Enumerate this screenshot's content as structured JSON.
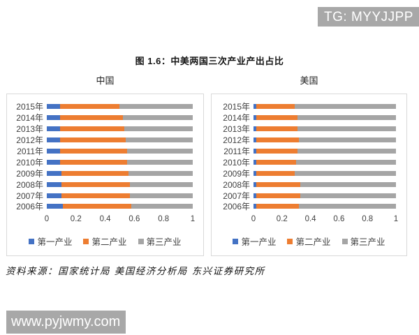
{
  "watermarks": {
    "top_right": "TG: MYYJJPP",
    "bottom_left": "www.pyjwmy.com"
  },
  "figure_title": "图 1.6：中美两国三次产业产出占比",
  "source_note": "资料来源：国家统计局 美国经济分析局  东兴证券研究所",
  "colors": {
    "primary_industry": "#4472C4",
    "secondary_industry": "#ED7D31",
    "tertiary_industry": "#A5A5A5",
    "watermark_bg": "#A8A8A8",
    "panel_border": "#D9D9D9"
  },
  "chart_data": [
    {
      "type": "bar",
      "orientation": "horizontal",
      "stacked": true,
      "title": "中国",
      "categories": [
        "2015年",
        "2014年",
        "2013年",
        "2012年",
        "2011年",
        "2010年",
        "2009年",
        "2008年",
        "2007年",
        "2006年"
      ],
      "series": [
        {
          "name": "第一产业",
          "color": "#4472C4",
          "values": [
            0.09,
            0.09,
            0.09,
            0.09,
            0.09,
            0.09,
            0.1,
            0.1,
            0.1,
            0.11
          ]
        },
        {
          "name": "第二产业",
          "color": "#ED7D31",
          "values": [
            0.41,
            0.43,
            0.44,
            0.45,
            0.46,
            0.46,
            0.46,
            0.47,
            0.47,
            0.47
          ]
        },
        {
          "name": "第三产业",
          "color": "#A5A5A5",
          "values": [
            0.5,
            0.48,
            0.47,
            0.46,
            0.45,
            0.45,
            0.44,
            0.43,
            0.43,
            0.42
          ]
        }
      ],
      "xlim": [
        0,
        1
      ],
      "xticks": [
        "0",
        "0.2",
        "0.4",
        "0.6",
        "0.8",
        "1"
      ],
      "grid": false,
      "legend_position": "bottom"
    },
    {
      "type": "bar",
      "orientation": "horizontal",
      "stacked": true,
      "title": "美国",
      "categories": [
        "2015年",
        "2014年",
        "2013年",
        "2012年",
        "2011年",
        "2010年",
        "2009年",
        "2008年",
        "2007年",
        "2006年"
      ],
      "series": [
        {
          "name": "第一产业",
          "color": "#4472C4",
          "values": [
            0.02,
            0.02,
            0.02,
            0.02,
            0.02,
            0.02,
            0.02,
            0.02,
            0.02,
            0.02
          ]
        },
        {
          "name": "第二产业",
          "color": "#ED7D31",
          "values": [
            0.27,
            0.29,
            0.29,
            0.3,
            0.29,
            0.28,
            0.27,
            0.31,
            0.31,
            0.3
          ]
        },
        {
          "name": "第三产业",
          "color": "#A5A5A5",
          "values": [
            0.71,
            0.69,
            0.69,
            0.68,
            0.69,
            0.7,
            0.71,
            0.67,
            0.67,
            0.68
          ]
        }
      ],
      "xlim": [
        0,
        1
      ],
      "xticks": [
        "0",
        "0.2",
        "0.4",
        "0.6",
        "0.8",
        "1"
      ],
      "grid": false,
      "legend_position": "bottom"
    }
  ]
}
